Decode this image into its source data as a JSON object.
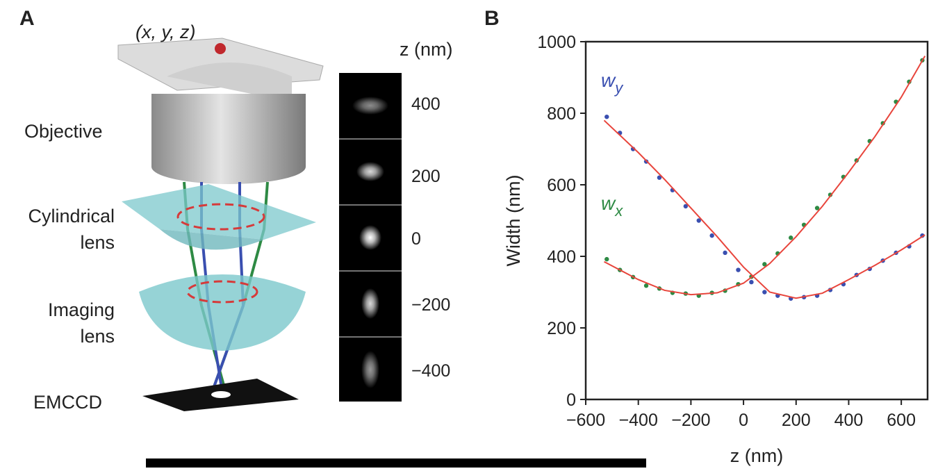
{
  "panel_a": {
    "label": "A",
    "coordinate": "(x, y, z)",
    "objective": "Objective",
    "cylindrical_lens": [
      "Cylindrical",
      "lens"
    ],
    "imaging_lens": [
      "Imaging",
      "lens"
    ],
    "camera": "EMCCD",
    "z_axis_label": "z (nm)",
    "z_ticks": [
      "400",
      "200",
      "0",
      "−200",
      "−400"
    ]
  },
  "chart_data": {
    "type": "scatter",
    "panel_label": "B",
    "xlabel": "z (nm)",
    "ylabel": "Width (nm)",
    "xlim": [
      -600,
      700
    ],
    "ylim": [
      0,
      1000
    ],
    "xticks": [
      {
        "value": -600,
        "label": "−600"
      },
      {
        "value": -400,
        "label": "−400"
      },
      {
        "value": -200,
        "label": "−200"
      },
      0,
      200,
      400,
      600
    ],
    "yticks": [
      0,
      200,
      400,
      600,
      800,
      1000
    ],
    "x": [
      -520,
      -470,
      -420,
      -370,
      -320,
      -270,
      -220,
      -170,
      -120,
      -70,
      -20,
      30,
      80,
      130,
      180,
      230,
      280,
      330,
      380,
      430,
      480,
      530,
      580,
      630,
      680
    ],
    "series": [
      {
        "name": "wy",
        "color": "#3a4fb0",
        "values": [
          790,
          745,
          700,
          665,
          620,
          585,
          540,
          500,
          458,
          410,
          362,
          328,
          300,
          290,
          282,
          286,
          290,
          306,
          322,
          348,
          365,
          388,
          410,
          428,
          458
        ]
      },
      {
        "name": "wx",
        "color": "#2e8a44",
        "values": [
          392,
          362,
          342,
          318,
          310,
          298,
          296,
          290,
          298,
          304,
          322,
          343,
          378,
          408,
          452,
          488,
          535,
          572,
          622,
          668,
          722,
          772,
          832,
          888,
          948
        ]
      }
    ],
    "fits": [
      {
        "color": "#e8453c",
        "x": [
          -530,
          -400,
          -300,
          -200,
          -100,
          0,
          100,
          200,
          300,
          400,
          500,
          600,
          690
        ],
        "values": [
          780,
          690,
          615,
          535,
          455,
          370,
          300,
          283,
          297,
          335,
          375,
          418,
          460
        ]
      },
      {
        "color": "#e8453c",
        "x": [
          -530,
          -400,
          -300,
          -200,
          -100,
          0,
          100,
          200,
          300,
          400,
          500,
          600,
          690
        ],
        "values": [
          385,
          335,
          305,
          293,
          298,
          325,
          380,
          455,
          540,
          635,
          735,
          845,
          960
        ]
      }
    ]
  }
}
